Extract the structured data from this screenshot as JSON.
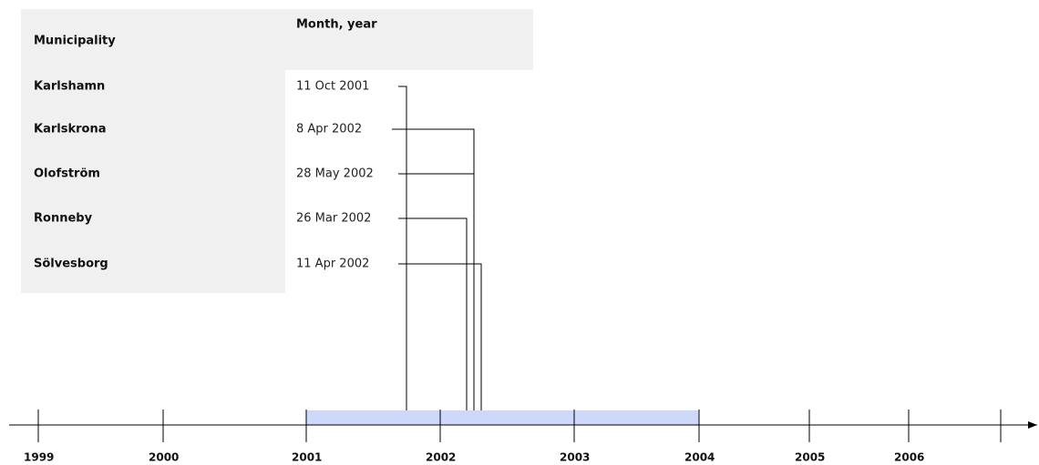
{
  "table": {
    "headers": [
      "Municipality",
      "Month, year"
    ],
    "rows": [
      [
        "Karlshamn",
        "11 Oct 2001"
      ],
      [
        "Karlskrona",
        "8 Apr 2002"
      ],
      [
        "Olofström",
        "28 May 2002"
      ],
      [
        "Ronneby",
        "26 Mar 2002"
      ],
      [
        "Sölvesborg",
        "11 Apr 2002"
      ]
    ]
  },
  "timeline": {
    "years": [
      "1999",
      "2000",
      "2001",
      "2002",
      "2003",
      "2004",
      "2005",
      "2006"
    ]
  }
}
